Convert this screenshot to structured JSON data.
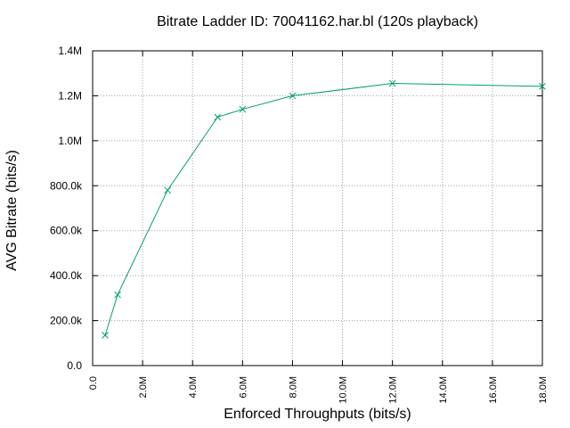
{
  "chart_data": {
    "type": "line",
    "title": "Bitrate Ladder ID: 70041162.har.bl (120s playback)",
    "xlabel": "Enforced Throughputs (bits/s)",
    "ylabel": "AVG Bitrate (bits/s)",
    "xlim": [
      0,
      18000000
    ],
    "ylim": [
      0,
      1400000
    ],
    "xticks": [
      {
        "value": 0,
        "label": "0.0"
      },
      {
        "value": 2000000,
        "label": "2.0M"
      },
      {
        "value": 4000000,
        "label": "4.0M"
      },
      {
        "value": 6000000,
        "label": "6.0M"
      },
      {
        "value": 8000000,
        "label": "8.0M"
      },
      {
        "value": 10000000,
        "label": "10.0M"
      },
      {
        "value": 12000000,
        "label": "12.0M"
      },
      {
        "value": 14000000,
        "label": "14.0M"
      },
      {
        "value": 16000000,
        "label": "16.0M"
      },
      {
        "value": 18000000,
        "label": "18.0M"
      }
    ],
    "yticks": [
      {
        "value": 0,
        "label": "0.0"
      },
      {
        "value": 200000,
        "label": "200.0k"
      },
      {
        "value": 400000,
        "label": "400.0k"
      },
      {
        "value": 600000,
        "label": "600.0k"
      },
      {
        "value": 800000,
        "label": "800.0k"
      },
      {
        "value": 1000000,
        "label": "1.0M"
      },
      {
        "value": 1200000,
        "label": "1.2M"
      },
      {
        "value": 1400000,
        "label": "1.4M"
      }
    ],
    "grid": true,
    "series": [
      {
        "color": "#009e73",
        "marker": "x",
        "x": [
          500000,
          1000000,
          3000000,
          5000000,
          6000000,
          8000000,
          12000000,
          18000000
        ],
        "y": [
          135000,
          315000,
          780000,
          1105000,
          1140000,
          1200000,
          1255000,
          1242000
        ]
      }
    ]
  }
}
